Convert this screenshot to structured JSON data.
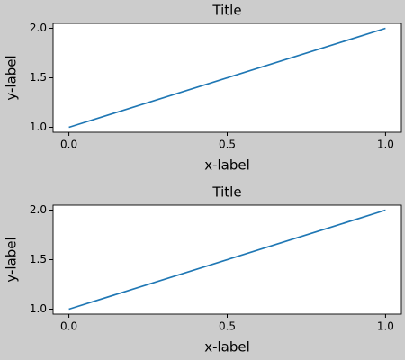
{
  "chart_data": [
    {
      "type": "line",
      "title": "Title",
      "x_label": "x-label",
      "y_label": "y-label",
      "x": [
        0,
        1
      ],
      "series": [
        {
          "values": [
            1,
            2
          ],
          "color": "#1f77b4"
        }
      ],
      "xlim": [
        -0.05,
        1.05
      ],
      "ylim": [
        0.95,
        2.05
      ],
      "xticks": [
        {
          "value": 0,
          "label": "0.0"
        },
        0.5,
        {
          "value": 1,
          "label": "1.0"
        }
      ],
      "yticks": [
        {
          "value": 1,
          "label": "1.0"
        },
        1.5,
        {
          "value": 2,
          "label": "2.0"
        }
      ]
    },
    {
      "type": "line",
      "title": "Title",
      "x_label": "x-label",
      "y_label": "y-label",
      "x": [
        0,
        1
      ],
      "series": [
        {
          "values": [
            1,
            2
          ],
          "color": "#1f77b4"
        }
      ],
      "xlim": [
        -0.05,
        1.05
      ],
      "ylim": [
        0.95,
        2.05
      ],
      "xticks": [
        {
          "value": 0,
          "label": "0.0"
        },
        0.5,
        {
          "value": 1,
          "label": "1.0"
        }
      ],
      "yticks": [
        {
          "value": 1,
          "label": "1.0"
        },
        1.5,
        {
          "value": 2,
          "label": "2.0"
        }
      ]
    }
  ]
}
